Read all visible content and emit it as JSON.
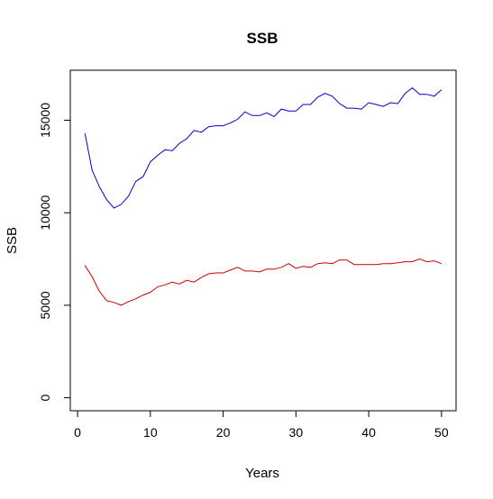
{
  "chart_data": {
    "type": "line",
    "title": "SSB",
    "xlabel": "Years",
    "ylabel": "SSB",
    "xlim": [
      -1,
      52
    ],
    "ylim": [
      -700,
      17700
    ],
    "xticks": [
      0,
      10,
      20,
      30,
      40,
      50
    ],
    "yticks": [
      0,
      5000,
      10000,
      15000
    ],
    "grid": false,
    "legend": "none",
    "x": [
      1,
      2,
      3,
      4,
      5,
      6,
      7,
      8,
      9,
      10,
      11,
      12,
      13,
      14,
      15,
      16,
      17,
      18,
      19,
      20,
      21,
      22,
      23,
      24,
      25,
      26,
      27,
      28,
      29,
      30,
      31,
      32,
      33,
      34,
      35,
      36,
      37,
      38,
      39,
      40,
      41,
      42,
      43,
      44,
      45,
      46,
      47,
      48,
      49,
      50
    ],
    "series": [
      {
        "color": "#0000CC",
        "values": [
          14300,
          12300,
          11400,
          10700,
          10250,
          10450,
          10900,
          11700,
          11950,
          12750,
          13100,
          13400,
          13350,
          13750,
          14000,
          14450,
          14350,
          14650,
          14700,
          14700,
          14850,
          15050,
          15450,
          15250,
          15250,
          15400,
          15200,
          15600,
          15500,
          15500,
          15850,
          15850,
          16250,
          16450,
          16300,
          15900,
          15650,
          15650,
          15600,
          15950,
          15850,
          15750,
          15950,
          15900,
          16450,
          16750,
          16400,
          16400,
          16300,
          16650
        ]
      },
      {
        "color": "#CC0000",
        "values": [
          7150,
          6550,
          5750,
          5250,
          5150,
          5000,
          5200,
          5350,
          5550,
          5700,
          6000,
          6100,
          6250,
          6150,
          6350,
          6250,
          6500,
          6700,
          6750,
          6750,
          6900,
          7050,
          6850,
          6850,
          6800,
          6950,
          6950,
          7050,
          7250,
          7000,
          7100,
          7050,
          7250,
          7300,
          7250,
          7450,
          7450,
          7200,
          7200,
          7200,
          7200,
          7250,
          7250,
          7300,
          7350,
          7350,
          7500,
          7350,
          7400,
          7250
        ]
      }
    ]
  }
}
